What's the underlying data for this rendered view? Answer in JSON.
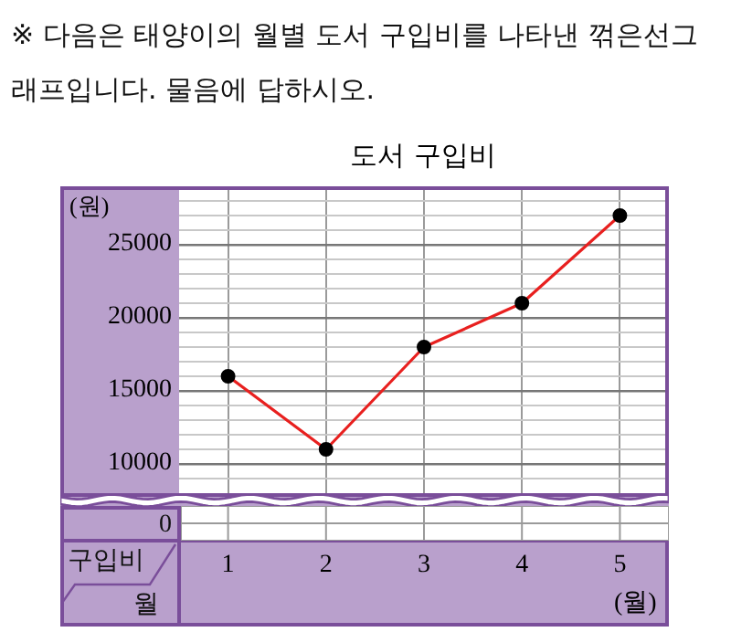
{
  "chart_data": {
    "type": "line",
    "title": "도서 구입비",
    "ylabel": "(원)",
    "xlabel": "(월)",
    "annotations": [
      "※ 다음은 태양이의 월별 도서 구입비를 나타낸 꺾은선그래프입니다. 물음에 답하시오.",
      "0",
      "구입비",
      "월"
    ],
    "categories": [
      "1",
      "2",
      "3",
      "4",
      "5"
    ],
    "series": [
      {
        "color": "#e8201f",
        "values": [
          16000,
          11000,
          18000,
          21000,
          27000
        ]
      }
    ],
    "ylim": [
      8000,
      29000
    ],
    "yticks": [
      {
        "value": 9000,
        "label": null
      },
      10000,
      {
        "value": 11000,
        "label": null
      },
      {
        "value": 12000,
        "label": null
      },
      {
        "value": 13000,
        "label": null
      },
      {
        "value": 14000,
        "label": null
      },
      15000,
      {
        "value": 16000,
        "label": null
      },
      {
        "value": 17000,
        "label": null
      },
      {
        "value": 18000,
        "label": null
      },
      {
        "value": 19000,
        "label": null
      },
      20000,
      {
        "value": 21000,
        "label": null
      },
      {
        "value": 22000,
        "label": null
      },
      {
        "value": 23000,
        "label": null
      },
      {
        "value": 24000,
        "label": null
      },
      25000,
      {
        "value": 26000,
        "label": null
      },
      {
        "value": 27000,
        "label": null
      },
      {
        "value": 28000,
        "label": null
      }
    ],
    "grid": true,
    "marker": "circle",
    "line_style": "solid"
  }
}
